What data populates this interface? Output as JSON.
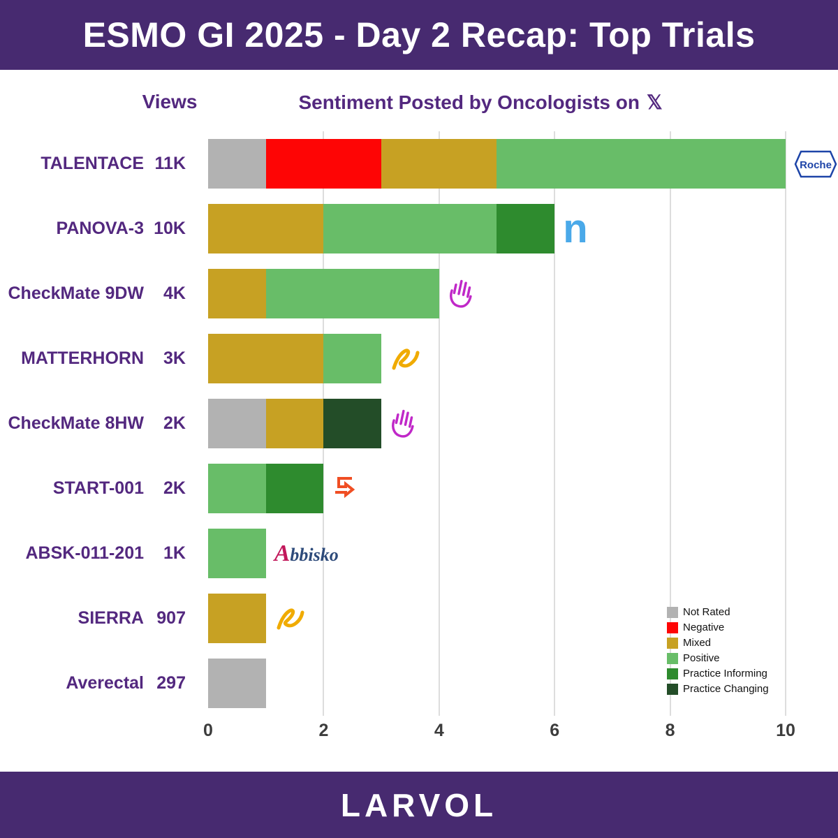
{
  "header": {
    "title": "ESMO GI 2025 - Day 2 Recap: Top Trials"
  },
  "subheader": {
    "views_label": "Views",
    "sentiment_label": "Sentiment Posted by Oncologists on",
    "x_symbol": "𝕏"
  },
  "footer": {
    "brand": "LARVOL"
  },
  "colors": {
    "header_bg": "#472a70",
    "label_text": "#53287f",
    "axis_text": "#3c3c3c",
    "gridline": "#dddddd",
    "not_rated": "#b2b2b2",
    "negative": "#fe0505",
    "mixed": "#c7a123",
    "positive": "#68bd68",
    "practice_informing": "#2e8b2e",
    "practice_changing": "#234d28",
    "roche_blue": "#1d44a8",
    "novocure_blue": "#4aa9e9",
    "bms_magenta": "#c028c8",
    "astrazeneca_gold": "#f0ab00",
    "summit_orange": "#f04e23",
    "abbisko_crimson": "#c2185b",
    "abbisko_navy": "#2d4a7a"
  },
  "legend": {
    "items": [
      {
        "label": "Not Rated",
        "key": "not_rated"
      },
      {
        "label": "Negative",
        "key": "negative"
      },
      {
        "label": "Mixed",
        "key": "mixed"
      },
      {
        "label": "Positive",
        "key": "positive"
      },
      {
        "label": "Practice Informing",
        "key": "practice_informing"
      },
      {
        "label": "Practice Changing",
        "key": "practice_changing"
      }
    ]
  },
  "chart_data": {
    "type": "bar",
    "orientation": "horizontal",
    "stacked": true,
    "title": "Sentiment Posted by Oncologists on 𝕏",
    "xlabel": "",
    "ylabel": "",
    "x_ticks": [
      0,
      2,
      4,
      6,
      8,
      10
    ],
    "xlim": [
      0,
      10
    ],
    "grid": true,
    "legend_position": "bottom-right",
    "segment_order": [
      "not_rated",
      "negative",
      "mixed",
      "positive",
      "practice_informing",
      "practice_changing"
    ],
    "rows": [
      {
        "trial": "TALENTACE",
        "views": "11K",
        "company_logo": "roche",
        "segments": {
          "not_rated": 1,
          "negative": 2,
          "mixed": 2,
          "positive": 5
        }
      },
      {
        "trial": "PANOVA-3",
        "views": "10K",
        "company_logo": "novocure",
        "segments": {
          "mixed": 2,
          "positive": 3,
          "practice_informing": 1
        }
      },
      {
        "trial": "CheckMate 9DW",
        "views": "4K",
        "company_logo": "bms-hand",
        "segments": {
          "mixed": 1,
          "positive": 3
        }
      },
      {
        "trial": "MATTERHORN",
        "views": "3K",
        "company_logo": "astrazeneca",
        "segments": {
          "mixed": 2,
          "positive": 1
        }
      },
      {
        "trial": "CheckMate 8HW",
        "views": "2K",
        "company_logo": "bms-hand",
        "segments": {
          "not_rated": 1,
          "mixed": 1,
          "practice_changing": 1
        }
      },
      {
        "trial": "START-001",
        "views": "2K",
        "company_logo": "summit",
        "segments": {
          "positive": 1,
          "practice_informing": 1
        }
      },
      {
        "trial": "ABSK-011-201",
        "views": "1K",
        "company_logo": "abbisko",
        "segments": {
          "positive": 1
        }
      },
      {
        "trial": "SIERRA",
        "views": "907",
        "company_logo": "astrazeneca",
        "segments": {
          "mixed": 1
        }
      },
      {
        "trial": "Averectal",
        "views": "297",
        "company_logo": null,
        "segments": {
          "not_rated": 1
        }
      }
    ],
    "logo_texts": {
      "roche": "Roche",
      "novocure": "n",
      "abbisko_initial": "A",
      "abbisko_rest": "bbisko"
    }
  }
}
